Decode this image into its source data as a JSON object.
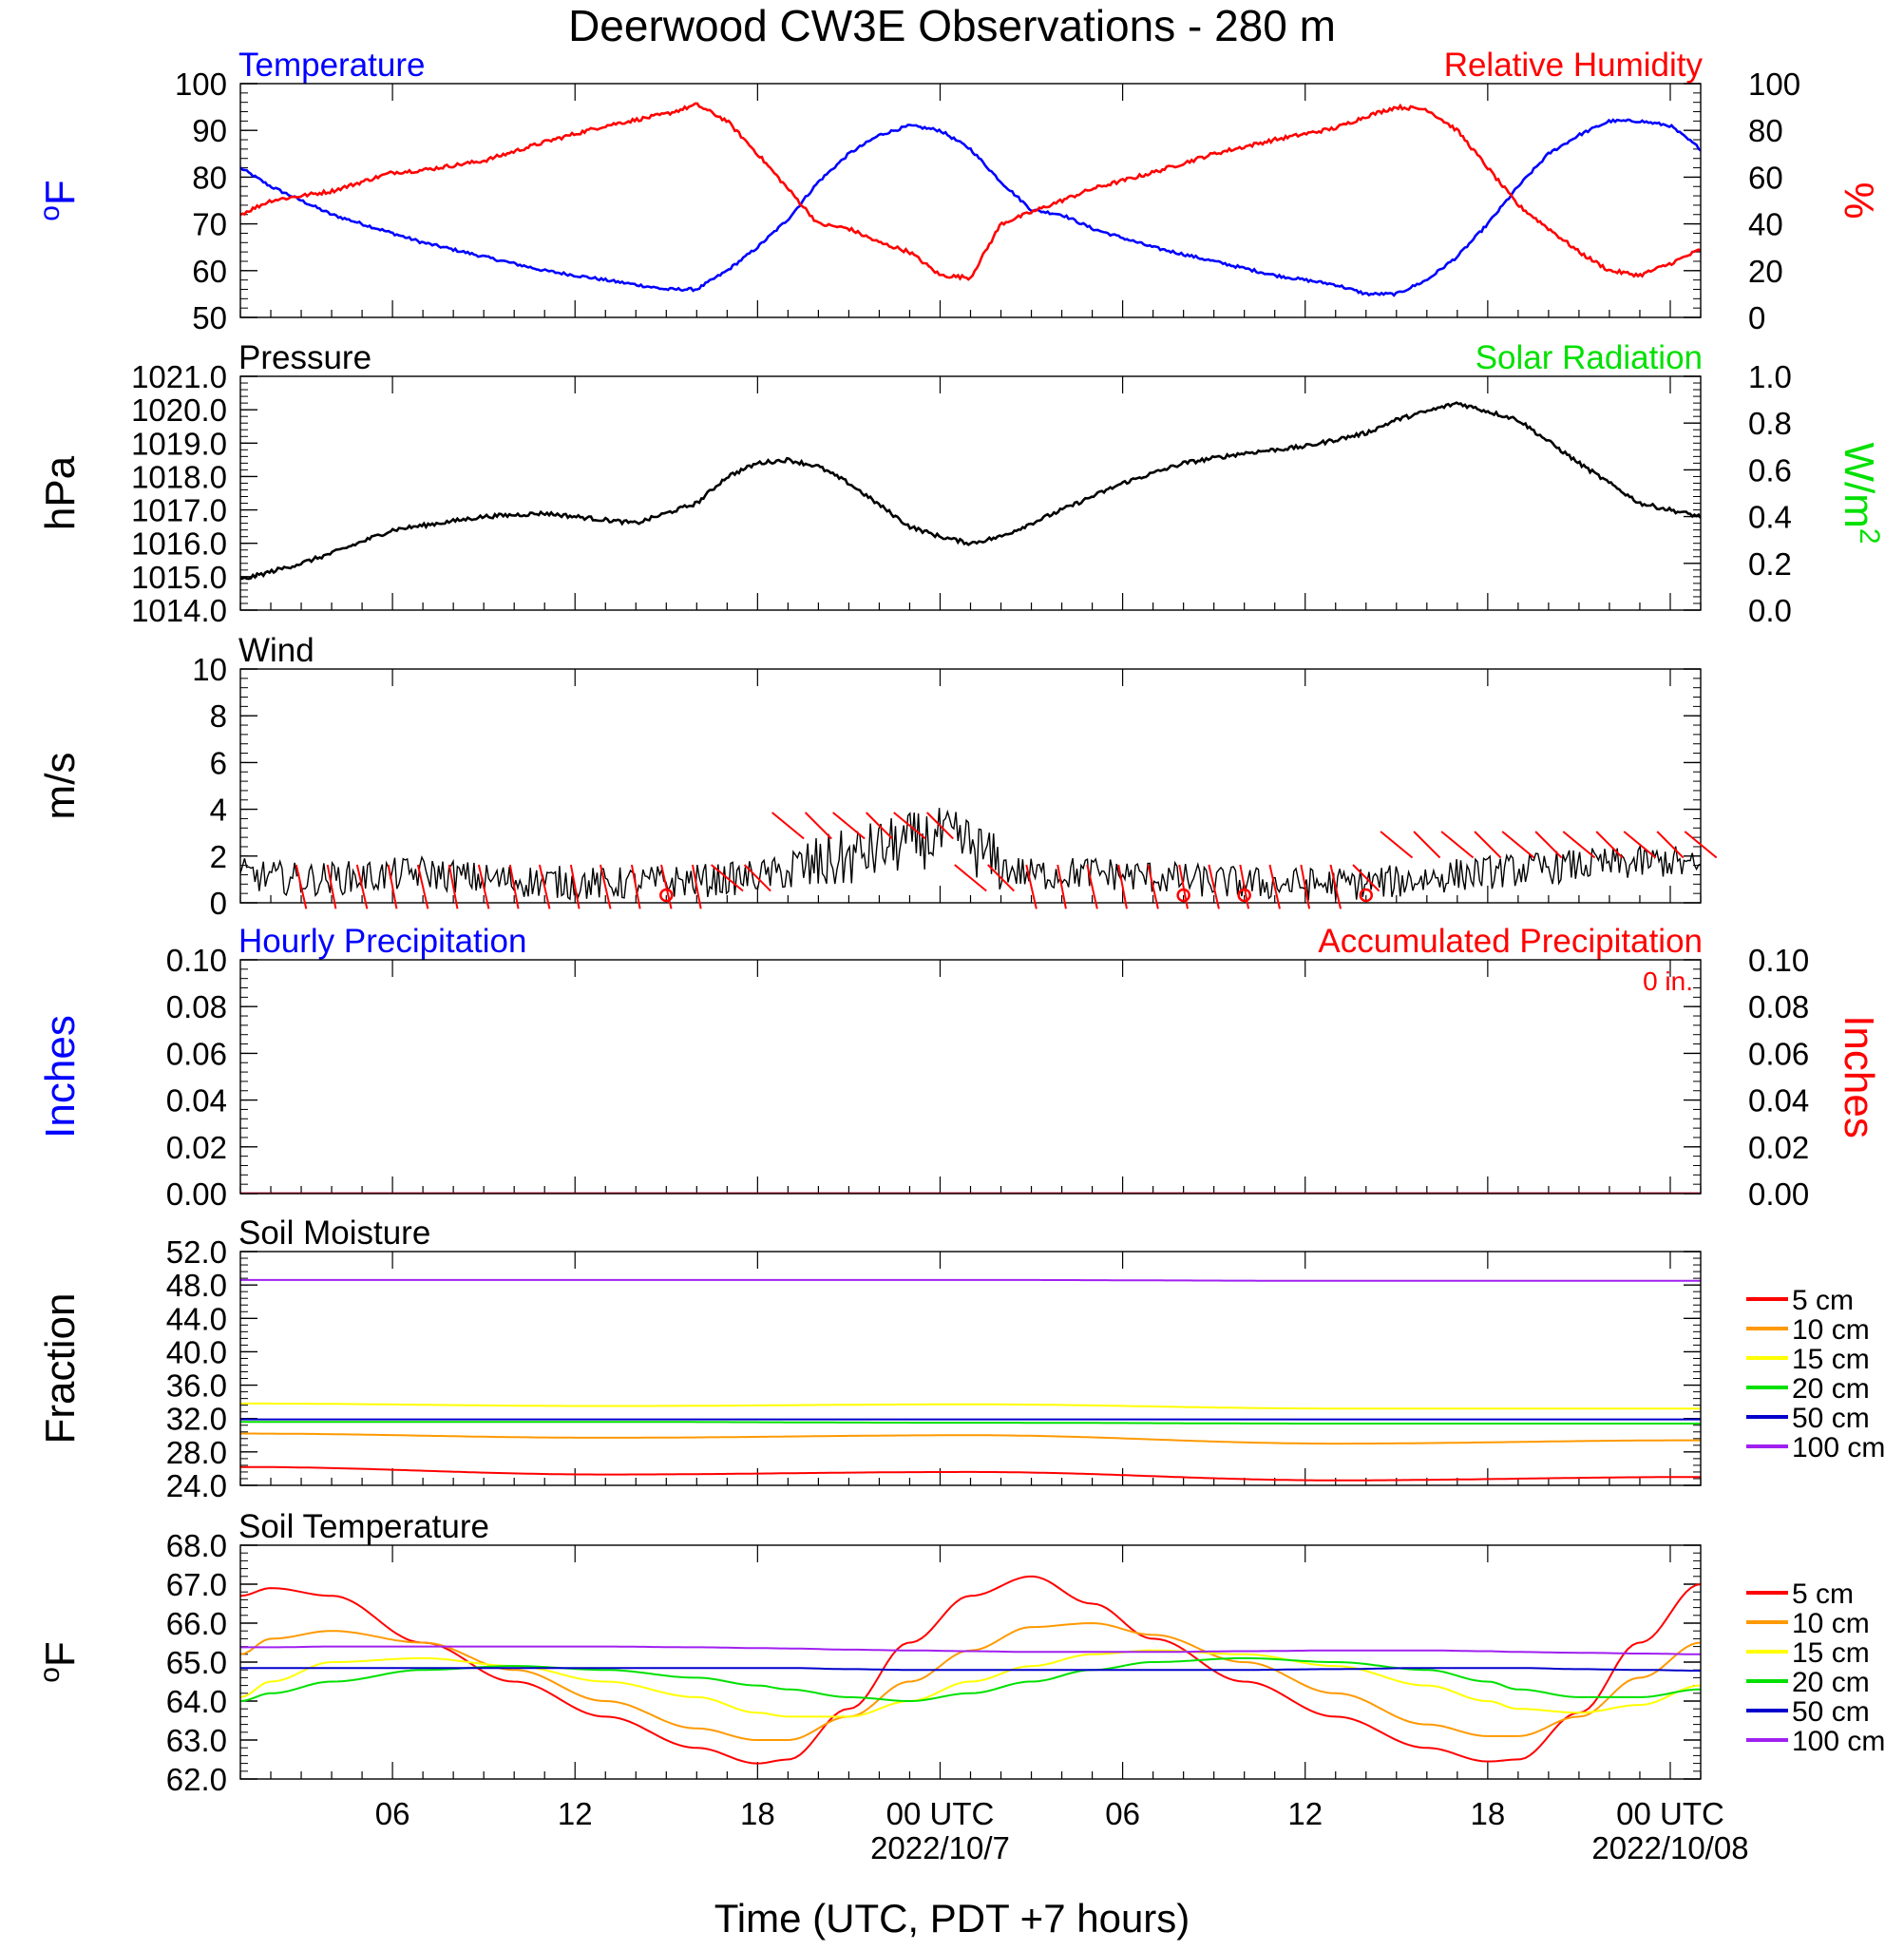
{
  "title": "Deerwood CW3E Observations - 280 m",
  "xlabel": "Time (UTC, PDT +7 hours)",
  "x_ticks": [
    "06",
    "12",
    "18",
    "00 UTC",
    "06",
    "12",
    "18",
    "00 UTC"
  ],
  "x_dates": [
    "2022/10/7",
    "2022/10/08"
  ],
  "colors": {
    "blue": "#0000ff",
    "red": "#ff0000",
    "green": "#00e000",
    "black": "#000000",
    "d5": "#ff0000",
    "d10": "#ff9900",
    "d15": "#ffff00",
    "d20": "#00e000",
    "d50": "#0000cc",
    "d100": "#a020f0"
  },
  "chart_data": [
    {
      "type": "line",
      "panel": "temperature-humidity",
      "left_title": "Temperature",
      "right_title": "Relative Humidity",
      "ylabel_left": "oF",
      "ylabel_right": "%",
      "ylim_left": [
        50,
        100
      ],
      "ylim_right": [
        0,
        100
      ],
      "yticks_left": [
        "100",
        "90",
        "80",
        "70",
        "60",
        "50"
      ],
      "yticks_right": [
        "100",
        "80",
        "60",
        "40",
        "20",
        "0"
      ],
      "x_hours": [
        0,
        1,
        2,
        3,
        4,
        5,
        6,
        8,
        10,
        12,
        14,
        15,
        16,
        17,
        18,
        19,
        20,
        21,
        22,
        23,
        24,
        25,
        26,
        27,
        28,
        30,
        32,
        34,
        36,
        37,
        38,
        39,
        40,
        41,
        42,
        43,
        44,
        45,
        46,
        47,
        48
      ],
      "series": [
        {
          "name": "Temperature",
          "color": "blue",
          "axis": "left",
          "values": [
            82,
            78,
            75,
            72,
            70,
            68,
            66,
            63,
            60,
            58,
            56,
            56,
            60,
            65,
            71,
            79,
            85,
            89,
            91,
            90,
            86,
            79,
            73,
            72,
            69,
            65,
            62,
            59,
            57,
            55,
            55,
            58,
            63,
            70,
            78,
            85,
            89,
            92,
            92,
            91,
            86
          ]
        },
        {
          "name": "Relative Humidity",
          "color": "red",
          "axis": "right",
          "values": [
            44,
            50,
            52,
            54,
            58,
            62,
            63,
            67,
            75,
            82,
            87,
            91,
            84,
            70,
            55,
            40,
            38,
            32,
            28,
            18,
            17,
            40,
            45,
            50,
            55,
            62,
            70,
            76,
            81,
            86,
            90,
            89,
            80,
            64,
            48,
            38,
            28,
            20,
            18,
            23,
            29
          ]
        }
      ]
    },
    {
      "type": "line",
      "panel": "pressure",
      "left_title": "Pressure",
      "right_title": "Solar Radiation",
      "ylabel_left": "hPa",
      "ylabel_right": "W/m2",
      "ylim_left": [
        1014,
        1021
      ],
      "ylim_right": [
        0,
        1
      ],
      "yticks_left": [
        "1021.0",
        "1020.0",
        "1019.0",
        "1018.0",
        "1017.0",
        "1016.0",
        "1015.0",
        "1014.0"
      ],
      "yticks_right": [
        "1.0",
        "0.8",
        "0.6",
        "0.4",
        "0.2",
        "0.0"
      ],
      "x_hours": [
        0,
        2,
        3,
        5,
        8,
        10,
        11,
        13,
        15,
        16,
        17,
        18,
        19,
        20,
        22,
        23,
        24,
        25,
        27,
        29,
        31,
        33,
        35,
        37,
        38,
        40,
        42,
        44,
        46,
        48
      ],
      "series": [
        {
          "name": "Pressure",
          "color": "black",
          "axis": "left",
          "values": [
            1014.9,
            1015.4,
            1015.7,
            1016.4,
            1016.8,
            1016.9,
            1016.8,
            1016.6,
            1017.2,
            1018.0,
            1018.4,
            1018.5,
            1018.3,
            1017.8,
            1016.5,
            1016.2,
            1016.0,
            1016.2,
            1017.0,
            1017.8,
            1018.4,
            1018.7,
            1018.9,
            1019.3,
            1019.7,
            1020.2,
            1019.7,
            1018.4,
            1017.2,
            1016.8
          ]
        }
      ]
    },
    {
      "type": "line",
      "panel": "wind",
      "left_title": "Wind",
      "ylabel_left": "m/s",
      "ylim_left": [
        0,
        10
      ],
      "yticks_left": [
        "10",
        "8",
        "6",
        "4",
        "2",
        "0"
      ],
      "x_hours": [
        0,
        2,
        4,
        6,
        8,
        10,
        12,
        14,
        16,
        18,
        19,
        20,
        21,
        22,
        23,
        24,
        25,
        26,
        28,
        30,
        32,
        34,
        36,
        38,
        40,
        42,
        44,
        46,
        47,
        48
      ],
      "series": [
        {
          "name": "Wind",
          "color": "black",
          "axis": "left",
          "values": [
            1.2,
            1.0,
            1.1,
            1.3,
            1.0,
            0.9,
            0.8,
            0.9,
            1.0,
            1.3,
            1.6,
            1.9,
            2.3,
            2.6,
            2.8,
            2.5,
            1.5,
            1.2,
            1.3,
            1.1,
            0.9,
            0.8,
            0.8,
            0.9,
            1.2,
            1.4,
            1.6,
            1.7,
            1.8,
            1.4
          ]
        }
      ]
    },
    {
      "type": "line",
      "panel": "precipitation",
      "left_title": "Hourly Precipitation",
      "right_title": "Accumulated Precipitation",
      "total_label": "0 in.",
      "ylabel_left": "Inches",
      "ylabel_right": "Inches",
      "ylim_left": [
        0,
        0.1
      ],
      "ylim_right": [
        0,
        0.1
      ],
      "yticks_left": [
        "0.10",
        "0.08",
        "0.06",
        "0.04",
        "0.02",
        "0.00"
      ],
      "yticks_right": [
        "0.10",
        "0.08",
        "0.06",
        "0.04",
        "0.02",
        "0.00"
      ],
      "x_hours": [
        0,
        48
      ],
      "series": [
        {
          "name": "Hourly Precipitation",
          "color": "blue",
          "axis": "left",
          "values": [
            0,
            0
          ]
        },
        {
          "name": "Accumulated Precipitation",
          "color": "red",
          "axis": "left",
          "values": [
            0,
            0
          ]
        }
      ]
    },
    {
      "type": "line",
      "panel": "soil-moisture",
      "left_title": "Soil Moisture",
      "ylabel_left": "Fraction",
      "ylim_left": [
        24,
        52
      ],
      "yticks_left": [
        "52.0",
        "48.0",
        "44.0",
        "40.0",
        "36.0",
        "32.0",
        "28.0",
        "24.0"
      ],
      "x_hours": [
        0,
        12,
        24,
        36,
        48
      ],
      "series": [
        {
          "name": "5 cm",
          "color": "d5",
          "axis": "left",
          "values": [
            26.2,
            25.3,
            25.6,
            24.6,
            25.0
          ]
        },
        {
          "name": "10 cm",
          "color": "d10",
          "axis": "left",
          "values": [
            30.2,
            29.7,
            30.0,
            29.0,
            29.4
          ]
        },
        {
          "name": "15 cm",
          "color": "d15",
          "axis": "left",
          "values": [
            33.8,
            33.5,
            33.7,
            33.2,
            33.2
          ]
        },
        {
          "name": "20 cm",
          "color": "d20",
          "axis": "left",
          "values": [
            31.6,
            31.6,
            31.5,
            31.4,
            31.4
          ]
        },
        {
          "name": "50 cm",
          "color": "d50",
          "axis": "left",
          "values": [
            31.9,
            31.9,
            31.9,
            31.9,
            31.9
          ]
        },
        {
          "name": "100 cm",
          "color": "d100",
          "axis": "left",
          "values": [
            48.6,
            48.6,
            48.6,
            48.5,
            48.5
          ]
        }
      ]
    },
    {
      "type": "line",
      "panel": "soil-temperature",
      "left_title": "Soil Temperature",
      "ylabel_left": "oF",
      "ylim_left": [
        62,
        68
      ],
      "yticks_left": [
        "68.0",
        "67.0",
        "66.0",
        "65.0",
        "64.0",
        "63.0",
        "62.0"
      ],
      "x_hours": [
        0,
        1,
        3,
        6,
        9,
        12,
        15,
        17,
        18,
        20,
        22,
        24,
        26,
        28,
        30,
        33,
        36,
        39,
        41,
        42,
        44,
        46,
        48
      ],
      "series": [
        {
          "name": "5 cm",
          "color": "d5",
          "axis": "left",
          "values": [
            66.7,
            66.9,
            66.7,
            65.5,
            64.5,
            63.6,
            62.8,
            62.4,
            62.5,
            63.8,
            65.5,
            66.7,
            67.2,
            66.5,
            65.6,
            64.5,
            63.6,
            62.8,
            62.45,
            62.5,
            63.7,
            65.5,
            67.0
          ]
        },
        {
          "name": "10 cm",
          "color": "d10",
          "axis": "left",
          "values": [
            65.2,
            65.6,
            65.8,
            65.5,
            64.8,
            64.0,
            63.3,
            63.0,
            63.0,
            63.6,
            64.5,
            65.3,
            65.9,
            66.0,
            65.7,
            65.0,
            64.2,
            63.4,
            63.1,
            63.1,
            63.6,
            64.6,
            65.5
          ]
        },
        {
          "name": "15 cm",
          "color": "d15",
          "axis": "left",
          "values": [
            64.1,
            64.5,
            65.0,
            65.1,
            64.9,
            64.5,
            64.1,
            63.7,
            63.6,
            63.6,
            64.0,
            64.5,
            64.9,
            65.2,
            65.3,
            65.2,
            64.9,
            64.4,
            64.0,
            63.8,
            63.7,
            63.9,
            64.4
          ]
        },
        {
          "name": "20 cm",
          "color": "d20",
          "axis": "left",
          "values": [
            64.0,
            64.2,
            64.5,
            64.8,
            64.9,
            64.8,
            64.6,
            64.4,
            64.3,
            64.1,
            64.0,
            64.2,
            64.5,
            64.8,
            65.0,
            65.1,
            65.0,
            64.8,
            64.5,
            64.3,
            64.1,
            64.1,
            64.3
          ]
        },
        {
          "name": "50 cm",
          "color": "d50",
          "axis": "left",
          "values": [
            64.85,
            64.85,
            64.85,
            64.85,
            64.85,
            64.85,
            64.85,
            64.85,
            64.85,
            64.82,
            64.8,
            64.8,
            64.8,
            64.8,
            64.8,
            64.8,
            64.82,
            64.85,
            64.85,
            64.85,
            64.82,
            64.8,
            64.78
          ]
        },
        {
          "name": "100 cm",
          "color": "d100",
          "axis": "left",
          "values": [
            65.38,
            65.38,
            65.4,
            65.4,
            65.4,
            65.4,
            65.38,
            65.36,
            65.35,
            65.32,
            65.3,
            65.28,
            65.26,
            65.26,
            65.26,
            65.28,
            65.3,
            65.3,
            65.28,
            65.26,
            65.24,
            65.22,
            65.2
          ]
        }
      ]
    }
  ]
}
